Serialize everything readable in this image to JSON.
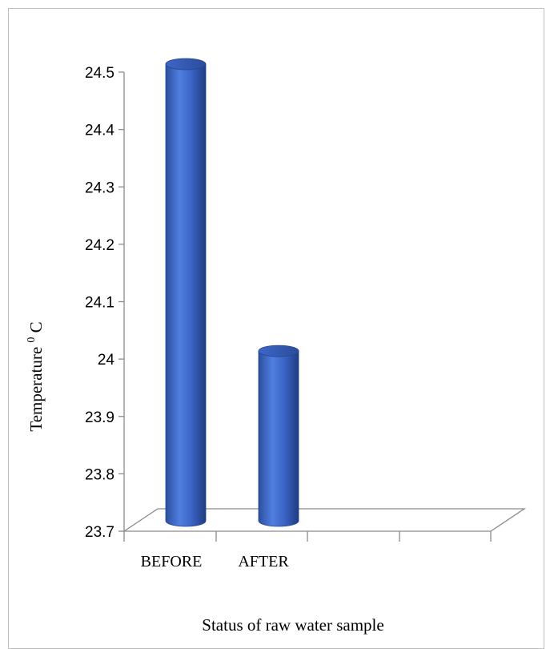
{
  "chart_data": {
    "type": "bar",
    "categories": [
      "BEFORE",
      "AFTER"
    ],
    "values": [
      24.5,
      24.0
    ],
    "xlabel": "Status of raw water sample",
    "ylabel": "Temperature",
    "ylabel_sup": "0",
    "ylabel_tail": "C",
    "ylim": [
      23.7,
      24.5
    ],
    "yticks": [
      "24.5",
      "24.4",
      "24.3",
      "24.2",
      "24.1",
      "24",
      "23.9",
      "23.8",
      "23.7"
    ],
    "grid": false,
    "legend": "none",
    "bar_color": "#3a63c4"
  }
}
